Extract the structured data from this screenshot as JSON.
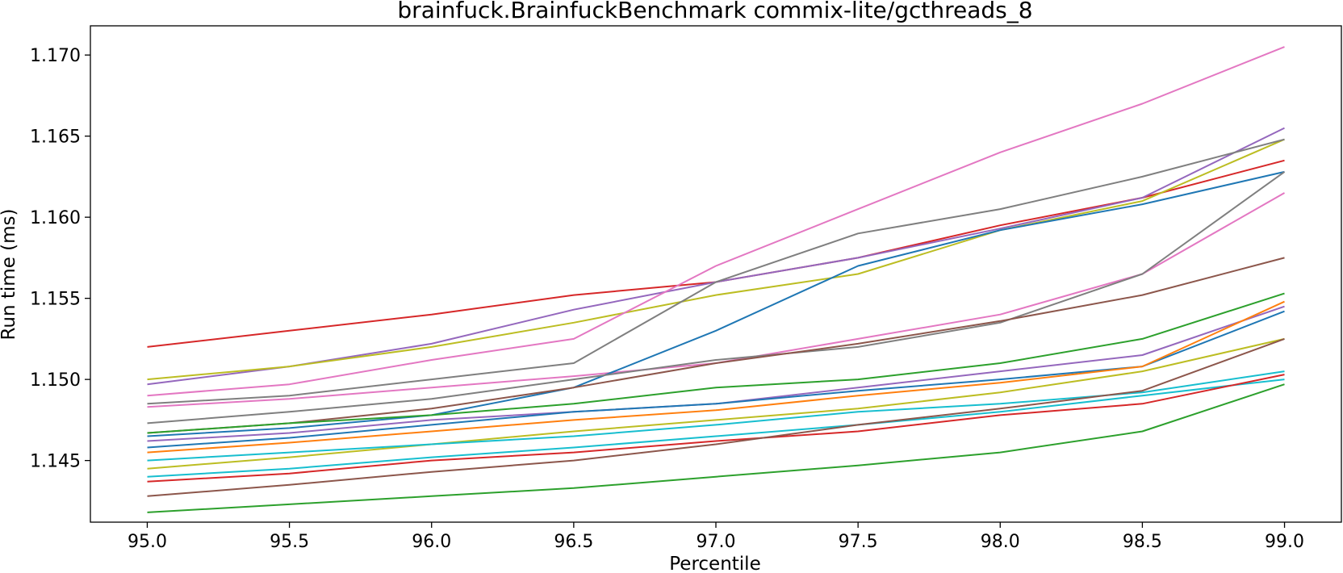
{
  "chart_data": {
    "type": "line",
    "title": "brainfuck.BrainfuckBenchmark commix-lite/gcthreads_8",
    "xlabel": "Percentile",
    "ylabel": "Run time (ms)",
    "xlim": [
      94.8,
      99.2
    ],
    "ylim": [
      1.1412,
      1.1718
    ],
    "x_ticks": [
      "95.0",
      "95.5",
      "96.0",
      "96.5",
      "97.0",
      "97.5",
      "98.0",
      "98.5",
      "99.0"
    ],
    "y_ticks": [
      "1.145",
      "1.150",
      "1.155",
      "1.160",
      "1.165",
      "1.170"
    ],
    "grid": false,
    "legend": "none",
    "x": [
      95.0,
      95.5,
      96.0,
      96.5,
      97.0,
      97.5,
      98.0,
      98.5,
      99.0
    ],
    "series": [
      {
        "color": "#d62728",
        "values": [
          1.152,
          1.153,
          1.154,
          1.1552,
          1.156,
          1.1575,
          1.1595,
          1.1612,
          1.1635
        ]
      },
      {
        "color": "#9467bd",
        "values": [
          1.1497,
          1.1508,
          1.1522,
          1.1543,
          1.156,
          1.1575,
          1.1593,
          1.1612,
          1.1655
        ]
      },
      {
        "color": "#bcbd22",
        "values": [
          1.15,
          1.1508,
          1.152,
          1.1535,
          1.1552,
          1.1565,
          1.1592,
          1.161,
          1.1648
        ]
      },
      {
        "color": "#e377c2",
        "values": [
          1.149,
          1.1497,
          1.1512,
          1.1525,
          1.157,
          1.1605,
          1.164,
          1.167,
          1.1705
        ]
      },
      {
        "color": "#7f7f7f",
        "values": [
          1.1485,
          1.149,
          1.15,
          1.151,
          1.156,
          1.159,
          1.1605,
          1.1625,
          1.1648
        ]
      },
      {
        "color": "#e377c2",
        "values": [
          1.1483,
          1.1488,
          1.1495,
          1.1502,
          1.151,
          1.1525,
          1.154,
          1.1565,
          1.1615
        ]
      },
      {
        "color": "#1f77b4",
        "values": [
          1.1465,
          1.147,
          1.1478,
          1.1495,
          1.153,
          1.157,
          1.1592,
          1.1608,
          1.1628
        ]
      },
      {
        "color": "#7f7f7f",
        "values": [
          1.1473,
          1.148,
          1.1488,
          1.15,
          1.1512,
          1.152,
          1.1535,
          1.1565,
          1.1628
        ]
      },
      {
        "color": "#8c564b",
        "values": [
          1.1467,
          1.1473,
          1.1482,
          1.1495,
          1.151,
          1.1522,
          1.1536,
          1.1552,
          1.1575
        ]
      },
      {
        "color": "#2ca02c",
        "values": [
          1.1467,
          1.1473,
          1.1478,
          1.1485,
          1.1495,
          1.15,
          1.151,
          1.1525,
          1.1553
        ]
      },
      {
        "color": "#9467bd",
        "values": [
          1.1462,
          1.1467,
          1.1475,
          1.148,
          1.1485,
          1.1495,
          1.1505,
          1.1515,
          1.1545
        ]
      },
      {
        "color": "#1f77b4",
        "values": [
          1.1458,
          1.1464,
          1.1472,
          1.148,
          1.1485,
          1.1493,
          1.15,
          1.1508,
          1.1542
        ]
      },
      {
        "color": "#ff7f0e",
        "values": [
          1.1455,
          1.1461,
          1.1468,
          1.1475,
          1.1481,
          1.149,
          1.1498,
          1.1508,
          1.1548
        ]
      },
      {
        "color": "#bcbd22",
        "values": [
          1.1445,
          1.1452,
          1.146,
          1.1468,
          1.1475,
          1.1482,
          1.1492,
          1.1505,
          1.1525
        ]
      },
      {
        "color": "#17becf",
        "values": [
          1.145,
          1.1455,
          1.146,
          1.1465,
          1.1472,
          1.148,
          1.1485,
          1.1492,
          1.1505
        ]
      },
      {
        "color": "#17becf",
        "values": [
          1.144,
          1.1445,
          1.1452,
          1.1458,
          1.1465,
          1.1472,
          1.148,
          1.149,
          1.15
        ]
      },
      {
        "color": "#d62728",
        "values": [
          1.1437,
          1.1442,
          1.145,
          1.1455,
          1.1462,
          1.1468,
          1.1478,
          1.1485,
          1.1503
        ]
      },
      {
        "color": "#8c564b",
        "values": [
          1.1428,
          1.1435,
          1.1443,
          1.145,
          1.146,
          1.1472,
          1.1482,
          1.1493,
          1.1525
        ]
      },
      {
        "color": "#2ca02c",
        "values": [
          1.1418,
          1.1423,
          1.1428,
          1.1433,
          1.144,
          1.1447,
          1.1455,
          1.1468,
          1.1497
        ]
      }
    ]
  }
}
